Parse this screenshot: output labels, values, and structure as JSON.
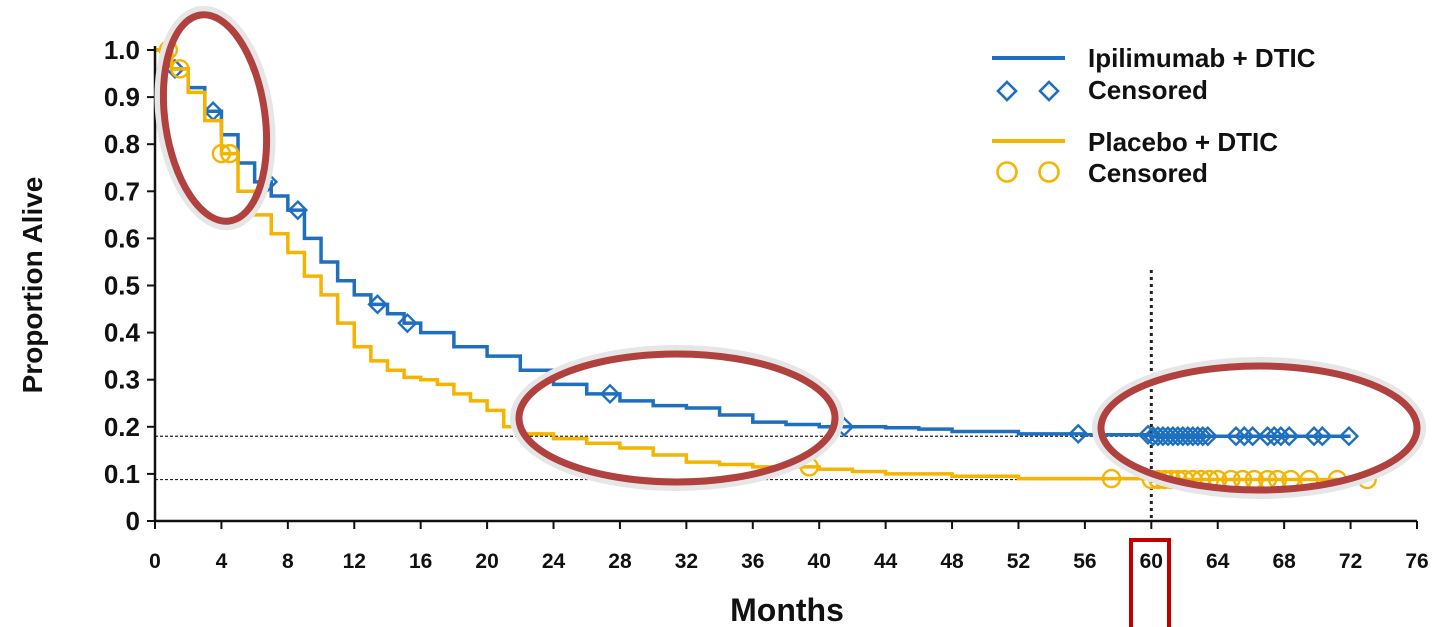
{
  "chart_data": {
    "type": "line",
    "xlabel": "Months",
    "ylabel": "Proportion Alive",
    "xlim": [
      0,
      76
    ],
    "ylim": [
      0,
      1.0
    ],
    "x_ticks": [
      "0",
      "4",
      "8",
      "12",
      "16",
      "20",
      "24",
      "28",
      "32",
      "36",
      "40",
      "44",
      "48",
      "52",
      "56",
      "60",
      "64",
      "68",
      "72",
      "76"
    ],
    "y_ticks": [
      "0",
      "0.1",
      "0.2",
      "0.3",
      "0.4",
      "0.5",
      "0.6",
      "0.7",
      "0.8",
      "0.9",
      "1.0"
    ],
    "legend": {
      "placement": "top-right",
      "entries": [
        {
          "label": "Ipilimumab + DTIC",
          "marker": "line"
        },
        {
          "label": "Censored",
          "marker": "diamond"
        },
        {
          "label": "Placebo + DTIC",
          "marker": "line"
        },
        {
          "label": "Censored",
          "marker": "circle"
        }
      ]
    },
    "series": [
      {
        "name": "Ipilimumab + DTIC",
        "color": "#1f6fbf",
        "points": [
          [
            0,
            1.0
          ],
          [
            1,
            0.96
          ],
          [
            2,
            0.92
          ],
          [
            3,
            0.87
          ],
          [
            4,
            0.82
          ],
          [
            5,
            0.76
          ],
          [
            6,
            0.72
          ],
          [
            7,
            0.69
          ],
          [
            8,
            0.66
          ],
          [
            9,
            0.6
          ],
          [
            10,
            0.55
          ],
          [
            11,
            0.51
          ],
          [
            12,
            0.48
          ],
          [
            13,
            0.46
          ],
          [
            14,
            0.44
          ],
          [
            15,
            0.42
          ],
          [
            16,
            0.4
          ],
          [
            18,
            0.37
          ],
          [
            20,
            0.35
          ],
          [
            22,
            0.32
          ],
          [
            24,
            0.29
          ],
          [
            26,
            0.27
          ],
          [
            28,
            0.255
          ],
          [
            30,
            0.245
          ],
          [
            32,
            0.24
          ],
          [
            34,
            0.225
          ],
          [
            36,
            0.21
          ],
          [
            38,
            0.205
          ],
          [
            40,
            0.2
          ],
          [
            44,
            0.198
          ],
          [
            46,
            0.195
          ],
          [
            48,
            0.19
          ],
          [
            52,
            0.185
          ],
          [
            56,
            0.183
          ],
          [
            60,
            0.18
          ],
          [
            72,
            0.18
          ]
        ],
        "censored": [
          1.2,
          3.5,
          6.8,
          8.6,
          13.4,
          15.2,
          27.4,
          41.5,
          55.6,
          59.8,
          60.1,
          60.4,
          60.7,
          61.0,
          61.3,
          61.6,
          61.9,
          62.2,
          62.5,
          62.8,
          63.1,
          63.4,
          65.1,
          65.6,
          66.1,
          67.0,
          67.4,
          67.8,
          68.3,
          69.8,
          70.3,
          71.9
        ]
      },
      {
        "name": "Placebo + DTIC",
        "color": "#f4b400",
        "points": [
          [
            0,
            1.0
          ],
          [
            1,
            0.96
          ],
          [
            2,
            0.91
          ],
          [
            3,
            0.85
          ],
          [
            4,
            0.78
          ],
          [
            5,
            0.7
          ],
          [
            6,
            0.65
          ],
          [
            7,
            0.61
          ],
          [
            8,
            0.57
          ],
          [
            9,
            0.52
          ],
          [
            10,
            0.48
          ],
          [
            11,
            0.42
          ],
          [
            12,
            0.37
          ],
          [
            13,
            0.34
          ],
          [
            14,
            0.32
          ],
          [
            15,
            0.305
          ],
          [
            16,
            0.3
          ],
          [
            17,
            0.29
          ],
          [
            18,
            0.27
          ],
          [
            19,
            0.255
          ],
          [
            20,
            0.235
          ],
          [
            21,
            0.2
          ],
          [
            22,
            0.185
          ],
          [
            24,
            0.175
          ],
          [
            26,
            0.165
          ],
          [
            28,
            0.155
          ],
          [
            30,
            0.14
          ],
          [
            32,
            0.125
          ],
          [
            34,
            0.12
          ],
          [
            36,
            0.115
          ],
          [
            38,
            0.115
          ],
          [
            40,
            0.11
          ],
          [
            42,
            0.105
          ],
          [
            44,
            0.1
          ],
          [
            48,
            0.095
          ],
          [
            52,
            0.09
          ],
          [
            56,
            0.09
          ],
          [
            60,
            0.088
          ],
          [
            73,
            0.088
          ]
        ],
        "censored": [
          0.8,
          1.5,
          4.0,
          4.5,
          39.4,
          57.6,
          60.0,
          60.4,
          60.8,
          61.2,
          61.6,
          62.0,
          62.5,
          63.0,
          63.5,
          64.0,
          64.8,
          65.5,
          66.2,
          67.0,
          67.6,
          68.4,
          69.5,
          71.2,
          73.0
        ]
      }
    ],
    "reference_lines": {
      "horizontal": [
        0.18,
        0.088
      ],
      "vertical": [
        60
      ]
    }
  }
}
